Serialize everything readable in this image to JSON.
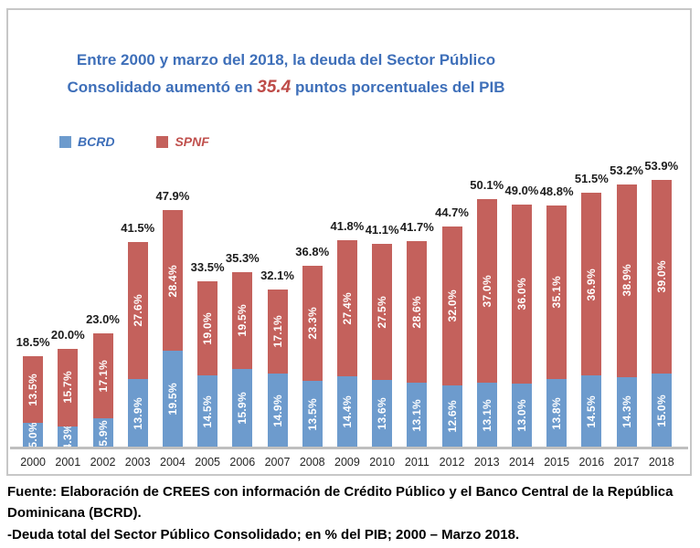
{
  "chart_data": {
    "type": "bar",
    "stacked": true,
    "grid": false,
    "legend_position": "top-left",
    "value_suffix": "%",
    "ylim": [
      0,
      60
    ],
    "title": {
      "line1": "Entre 2000 y marzo del 2018, la deuda del Sector Público",
      "line2_prefix": "Consolidado aumentó en ",
      "highlight": "35.4",
      "line2_suffix": " puntos porcentuales del PIB",
      "color": "#3e6fb9",
      "highlight_color": "#be4b48"
    },
    "categories": [
      "2000",
      "2001",
      "2002",
      "2003",
      "2004",
      "2005",
      "2006",
      "2007",
      "2008",
      "2009",
      "2010",
      "2011",
      "2012",
      "2013",
      "2014",
      "2015",
      "2016",
      "2017",
      "2018"
    ],
    "series": [
      {
        "name": "BCRD",
        "color": "#6d9bcd",
        "values": [
          5.0,
          4.3,
          5.9,
          13.9,
          19.5,
          14.5,
          15.9,
          14.9,
          13.5,
          14.4,
          13.6,
          13.1,
          12.6,
          13.1,
          13.0,
          13.8,
          14.5,
          14.3,
          15.0
        ]
      },
      {
        "name": "SPNF",
        "color": "#c4615c",
        "values": [
          13.5,
          15.7,
          17.1,
          27.6,
          28.4,
          19.0,
          19.5,
          17.1,
          23.3,
          27.4,
          27.5,
          28.6,
          32.0,
          37.0,
          36.0,
          35.1,
          36.9,
          38.9,
          39.0
        ]
      }
    ],
    "totals": [
      18.5,
      20.0,
      23.0,
      41.5,
      47.9,
      33.5,
      35.3,
      32.1,
      36.8,
      41.8,
      41.1,
      41.7,
      44.7,
      50.1,
      49.0,
      48.8,
      51.5,
      53.2,
      53.9
    ]
  },
  "footer": {
    "line1": "Fuente: Elaboración de CREES con información de Crédito Público y el Banco Central de la República Dominicana (BCRD).",
    "line2": "-Deuda total del Sector Público Consolidado; en % del PIB; 2000 – Marzo 2018."
  },
  "colors": {
    "bcrd": "#6d9bcd",
    "spnf": "#c4615c",
    "axis_line": "#bfbfbf",
    "box_border": "#c7c7c7",
    "total_label": "#1c1c1c",
    "segment_label": "#ffffff"
  }
}
